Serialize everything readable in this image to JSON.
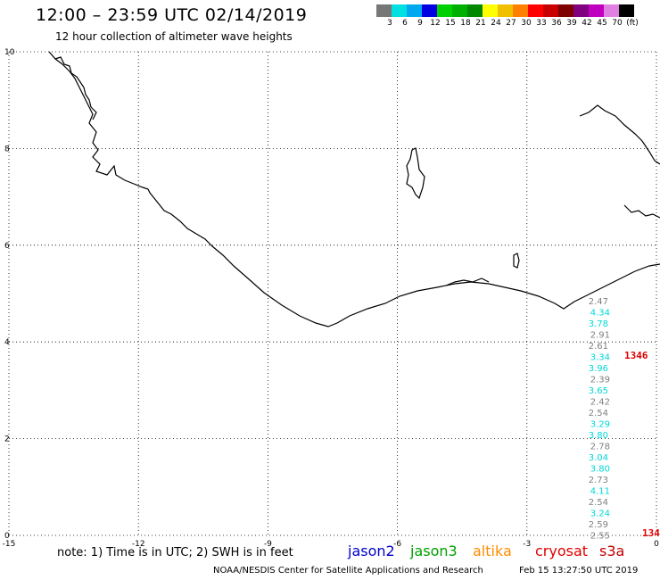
{
  "header": {
    "title": "12:00 – 23:59 UTC 02/14/2019",
    "subtitle": "12 hour collection of altimeter wave heights"
  },
  "colorbar": {
    "colors": [
      "#777777",
      "#00e0e0",
      "#00a8f0",
      "#0000e0",
      "#00d000",
      "#00b000",
      "#008800",
      "#ffff00",
      "#f0c000",
      "#ff8000",
      "#ff0000",
      "#c80000",
      "#800000",
      "#800080",
      "#c000c0",
      "#e080e0",
      "#000000"
    ],
    "labels": [
      "3",
      "6",
      "9",
      "12",
      "15",
      "18",
      "21",
      "24",
      "27",
      "30",
      "33",
      "36",
      "39",
      "42",
      "45",
      "70",
      "(ft)"
    ]
  },
  "axes": {
    "x_ticks": [
      "-15",
      "-12",
      "-9",
      "-6",
      "-3",
      "0"
    ],
    "y_ticks": [
      "0",
      "2",
      "4",
      "6",
      "8",
      "10"
    ],
    "x_range": [
      -15,
      0
    ],
    "y_range": [
      0,
      10
    ],
    "grid": "dotted"
  },
  "observations": [
    {
      "value": "2.47",
      "color": "#808080",
      "lat": 4.8
    },
    {
      "value": "4.34",
      "color": "#00d8d8",
      "lat": 4.6
    },
    {
      "value": "3.78",
      "color": "#00d8d8",
      "lat": 4.4
    },
    {
      "value": "2.91",
      "color": "#808080",
      "lat": 4.2
    },
    {
      "value": "2.61",
      "color": "#808080",
      "lat": 4.0
    },
    {
      "value": "3.34",
      "color": "#00d8d8",
      "lat": 3.8
    },
    {
      "value": "3.96",
      "color": "#00d8d8",
      "lat": 3.6
    },
    {
      "value": "2.39",
      "color": "#808080",
      "lat": 3.4
    },
    {
      "value": "3.65",
      "color": "#00d8d8",
      "lat": 3.2
    },
    {
      "value": "2.42",
      "color": "#808080",
      "lat": 3.0
    },
    {
      "value": "2.54",
      "color": "#808080",
      "lat": 2.8
    },
    {
      "value": "3.29",
      "color": "#00d8d8",
      "lat": 2.6
    },
    {
      "value": "3.80",
      "color": "#00d8d8",
      "lat": 2.4
    },
    {
      "value": "2.78",
      "color": "#808080",
      "lat": 2.2
    },
    {
      "value": "3.04",
      "color": "#00d8d8",
      "lat": 2.0
    },
    {
      "value": "3.80",
      "color": "#00d8d8",
      "lat": 1.8
    },
    {
      "value": "2.73",
      "color": "#808080",
      "lat": 1.6
    },
    {
      "value": "4.11",
      "color": "#00d8d8",
      "lat": 1.4
    },
    {
      "value": "2.54",
      "color": "#808080",
      "lat": 1.2
    },
    {
      "value": "3.24",
      "color": "#00d8d8",
      "lat": 1.0
    },
    {
      "value": "2.59",
      "color": "#808080",
      "lat": 0.8
    },
    {
      "value": "2.55",
      "color": "#808080",
      "lat": 0.6
    }
  ],
  "time_labels": [
    {
      "value": "1346",
      "color": "#e00000"
    },
    {
      "value": "134",
      "color": "#e00000"
    }
  ],
  "footer": {
    "note": "note:  1) Time is in UTC;  2) SWH is in feet",
    "credit": "NOAA/NESDIS Center for Satellite Applications and Research",
    "timestamp": "Feb 15 13:27:50 UTC 2019"
  },
  "legend": [
    {
      "name": "jason2",
      "color": "#0000d0"
    },
    {
      "name": "jason3",
      "color": "#00a000"
    },
    {
      "name": "altika",
      "color": "#ff8c00"
    },
    {
      "name": "cryosat",
      "color": "#e00000"
    },
    {
      "name": "s3a",
      "color": "#c00000"
    }
  ]
}
